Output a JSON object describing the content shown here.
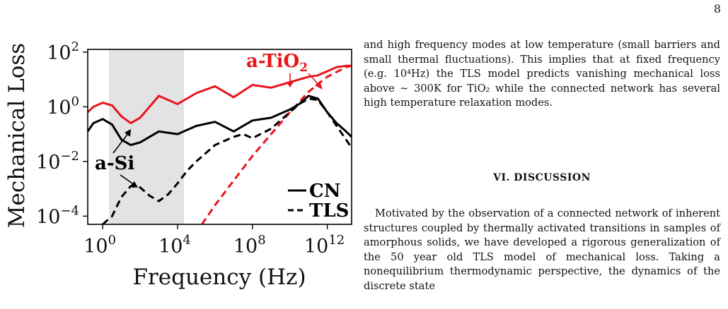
{
  "page_number": "8",
  "figure": {
    "xlabel": "Frequency (Hz)",
    "ylabel": "Mechanical Loss",
    "x_ticks": [
      {
        "base": "10",
        "exp": "0"
      },
      {
        "base": "10",
        "exp": "4"
      },
      {
        "base": "10",
        "exp": "8"
      },
      {
        "base": "10",
        "exp": "12"
      }
    ],
    "y_ticks": [
      {
        "base": "10",
        "exp": "2"
      },
      {
        "base": "10",
        "exp": "0"
      },
      {
        "base": "10",
        "exp": "−2"
      },
      {
        "base": "10",
        "exp": "−4"
      }
    ],
    "annotations": {
      "tio2_prefix": "a-TiO",
      "tio2_sub": "2",
      "si": "a-Si"
    },
    "legend": {
      "cn": "CN",
      "tls": "TLS"
    },
    "colors": {
      "si": "#000000",
      "tio2": "#e8151b",
      "band": "#e3e3e3"
    }
  },
  "chart_data": {
    "type": "line",
    "xlabel": "Frequency (Hz)",
    "ylabel": "Mechanical Loss",
    "x_scale": "log10",
    "y_scale": "log10",
    "xlim": [
      -0.8,
      13.3
    ],
    "ylim": [
      -4.3,
      2.1
    ],
    "highlight_band_x_log10": [
      0,
      4
    ],
    "series": [
      {
        "name": "a-TiO2 CN",
        "color": "#e8151b",
        "style": "solid",
        "x_log10": [
          -0.8,
          -0.5,
          0,
          0.5,
          1,
          1.5,
          2,
          3,
          4,
          5,
          6,
          7,
          8,
          9,
          10,
          11,
          11.5,
          12,
          12.5,
          13,
          13.3
        ],
        "y_log10": [
          -0.2,
          0.0,
          0.15,
          0.05,
          -0.35,
          -0.6,
          -0.4,
          0.4,
          0.1,
          0.5,
          0.75,
          0.35,
          0.8,
          0.7,
          0.9,
          1.1,
          1.15,
          1.3,
          1.45,
          1.5,
          1.5
        ]
      },
      {
        "name": "a-TiO2 TLS",
        "color": "#e8151b",
        "style": "dashed",
        "x_log10": [
          5.3,
          6,
          7,
          8,
          9,
          10,
          11,
          12,
          13,
          13.3
        ],
        "y_log10": [
          -4.3,
          -3.6,
          -2.7,
          -1.8,
          -1.0,
          -0.2,
          0.55,
          1.1,
          1.45,
          1.5
        ]
      },
      {
        "name": "a-Si CN",
        "color": "#000000",
        "style": "solid",
        "x_log10": [
          -0.8,
          -0.5,
          0,
          0.5,
          1,
          1.5,
          2,
          3,
          4,
          5,
          6,
          7,
          8,
          9,
          10,
          10.5,
          11,
          11.5,
          12,
          12.5,
          13,
          13.3
        ],
        "y_log10": [
          -0.9,
          -0.6,
          -0.45,
          -0.65,
          -1.2,
          -1.4,
          -1.3,
          -0.9,
          -1.0,
          -0.7,
          -0.55,
          -0.9,
          -0.5,
          -0.4,
          -0.1,
          0.1,
          0.4,
          0.3,
          -0.2,
          -0.6,
          -0.9,
          -1.1
        ]
      },
      {
        "name": "a-Si TLS",
        "color": "#000000",
        "style": "dashed",
        "x_log10": [
          0,
          0.5,
          1,
          1.5,
          2,
          2.5,
          3,
          3.5,
          4,
          4.5,
          5,
          6,
          7,
          7.5,
          8,
          9,
          10,
          10.5,
          11,
          11.5,
          12,
          12.5,
          13,
          13.3
        ],
        "y_log10": [
          -4.3,
          -4.0,
          -3.3,
          -2.9,
          -2.95,
          -3.25,
          -3.45,
          -3.2,
          -2.8,
          -2.35,
          -2.0,
          -1.4,
          -1.1,
          -1.0,
          -1.15,
          -0.8,
          -0.2,
          0.1,
          0.3,
          0.25,
          -0.2,
          -0.7,
          -1.2,
          -1.5
        ]
      }
    ]
  },
  "text": {
    "para_top": "and high frequency modes at low temperature (small barriers and small thermal fluctuations). This implies that at fixed frequency (e.g. 10⁴Hz) the TLS model predicts vanishing mechanical loss above ∼ 300K for TiO₂ while the connected network has several high temperature relaxation modes.",
    "section_heading": "VI.   DISCUSSION",
    "para_bottom": "Motivated by the observation of a connected network of inherent structures coupled by thermally activated transitions in samples of amorphous solids, we have developed a rigorous generalization of the 50 year old TLS model of mechanical loss. Taking a nonequilibrium thermodynamic perspective, the dynamics of the discrete state"
  }
}
